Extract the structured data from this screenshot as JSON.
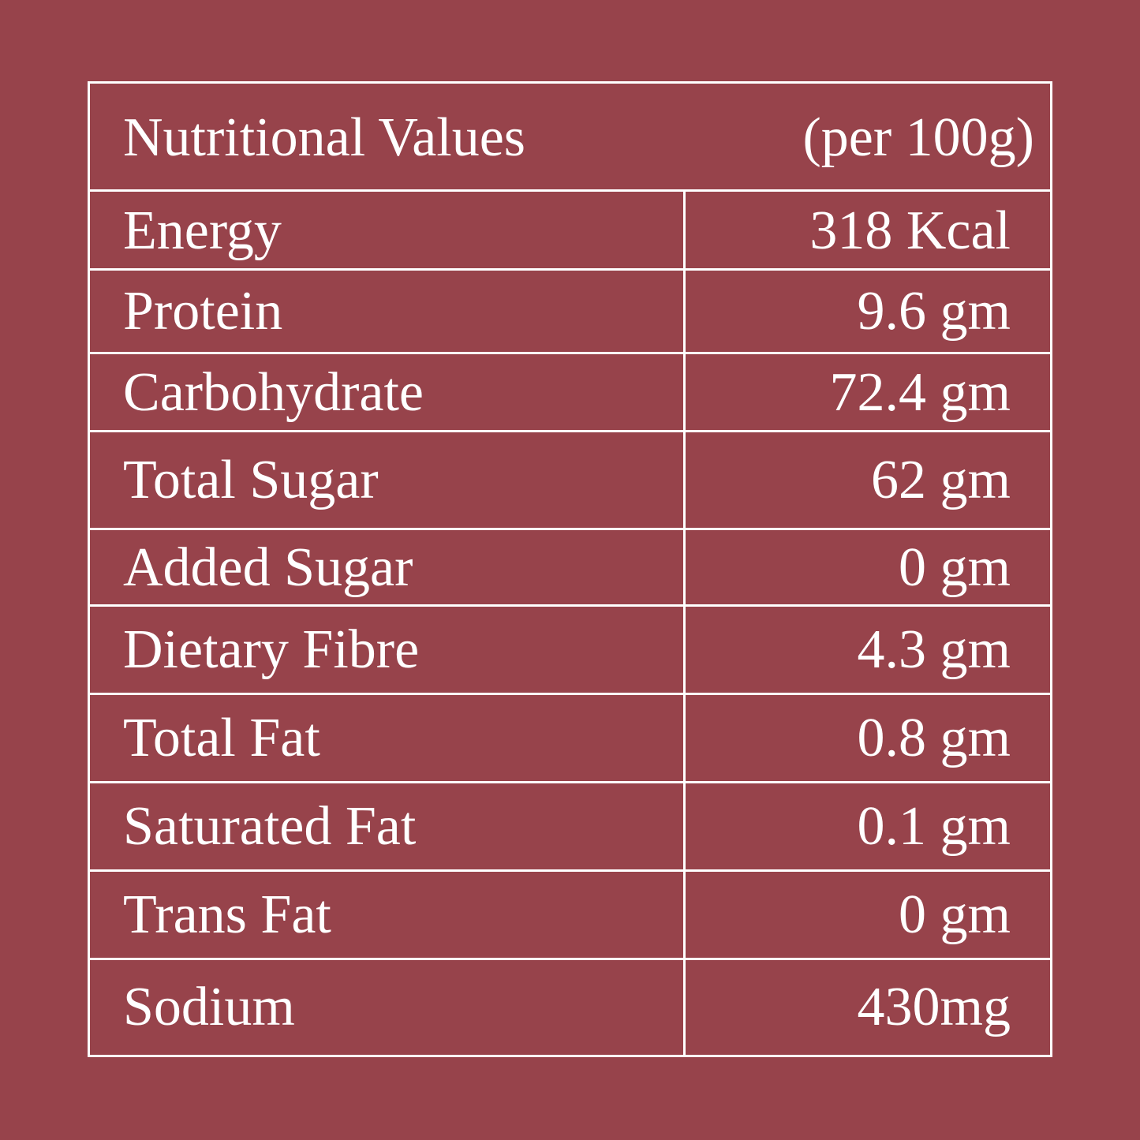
{
  "header": {
    "title": "Nutritional Values",
    "unit": "(per 100g)"
  },
  "table": {
    "rows": [
      [
        "Energy",
        "318 Kcal"
      ],
      [
        "Protein",
        "9.6 gm"
      ],
      [
        "Carbohydrate",
        "72.4 gm"
      ],
      [
        "Total Sugar",
        "62 gm"
      ],
      [
        "Added Sugar",
        "0 gm"
      ],
      [
        "Dietary Fibre",
        "4.3 gm"
      ],
      [
        "Total Fat",
        "0.8 gm"
      ],
      [
        "Saturated Fat",
        "0.1 gm"
      ],
      [
        "Trans Fat",
        "0 gm"
      ],
      [
        "Sodium",
        "430mg"
      ]
    ]
  }
}
